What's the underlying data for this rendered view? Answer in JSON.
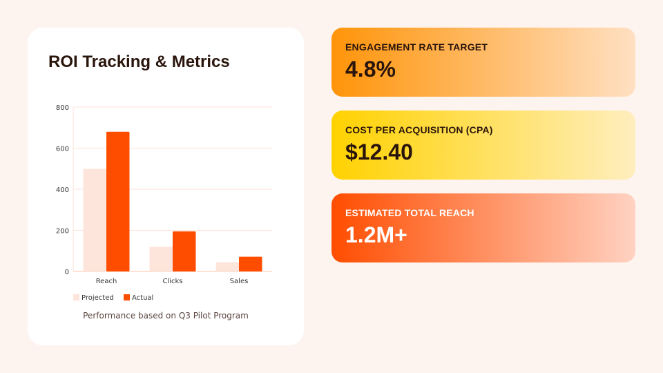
{
  "card": {
    "title": "ROI Tracking & Metrics",
    "caption": "Performance based on Q3 Pilot Program"
  },
  "kpis": [
    {
      "label": "ENGAGEMENT RATE TARGET",
      "value": "4.8%"
    },
    {
      "label": "COST PER ACQUISITION (CPA)",
      "value": "$12.40"
    },
    {
      "label": "ESTIMATED TOTAL REACH",
      "value": "1.2M+"
    }
  ],
  "chart_data": {
    "type": "bar",
    "categories": [
      "Reach",
      "Clicks",
      "Sales"
    ],
    "series": [
      {
        "name": "Projected",
        "values": [
          500,
          120,
          45
        ],
        "color": "#fde5dc"
      },
      {
        "name": "Actual",
        "values": [
          680,
          195,
          72
        ],
        "color": "#ff4d00"
      }
    ],
    "yticks": [
      0,
      200,
      400,
      600,
      800
    ],
    "ylim": [
      0,
      800
    ],
    "grid": true,
    "legend": "bottom-left"
  }
}
